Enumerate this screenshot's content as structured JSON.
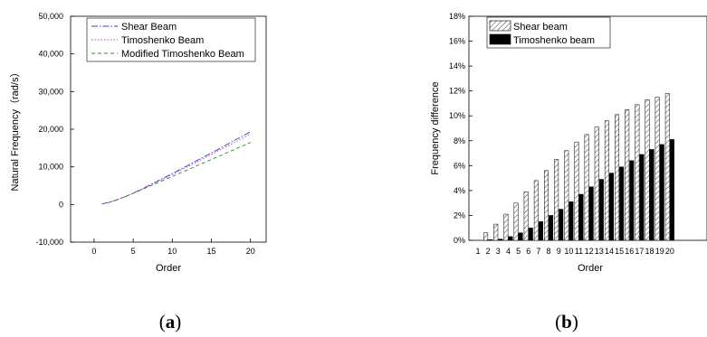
{
  "captions": {
    "a_open": "(",
    "a_letter": "a",
    "a_close": ")",
    "b_open": "(",
    "b_letter": "b",
    "b_close": ")"
  },
  "chart_data": [
    {
      "id": "a",
      "type": "line",
      "xlabel": "Order",
      "ylabel": "Natural Frequency（rad/s）",
      "xlim": [
        -3,
        22
      ],
      "ylim": [
        -10000,
        50000
      ],
      "xticks": [
        0,
        5,
        10,
        15,
        20
      ],
      "xtick_labels": [
        "0",
        "5",
        "10",
        "15",
        "20"
      ],
      "yticks": [
        -10000,
        0,
        10000,
        20000,
        30000,
        40000,
        50000
      ],
      "ytick_labels": [
        "-10,000",
        "0",
        "10,000",
        "20,000",
        "30,000",
        "40,000",
        "50,000"
      ],
      "legend_position": "top-left",
      "x": [
        1,
        2,
        3,
        4,
        5,
        6,
        7,
        8,
        9,
        10,
        11,
        12,
        13,
        14,
        15,
        16,
        17,
        18,
        19,
        20
      ],
      "series": [
        {
          "name": "Shear Beam",
          "color": "#3a3ad0",
          "dash": "7 2 1.5 2",
          "values": [
            150,
            600,
            1300,
            2100,
            3000,
            4000,
            5050,
            6100,
            7150,
            8200,
            9300,
            10400,
            11500,
            12600,
            13700,
            14800,
            15950,
            17100,
            18200,
            19300
          ]
        },
        {
          "name": "Timoshenko Beam",
          "color": "#c040c0",
          "dash": "1.5 2",
          "values": [
            150,
            600,
            1300,
            2100,
            3000,
            3950,
            4950,
            5950,
            6950,
            8000,
            9050,
            10100,
            11150,
            12250,
            13300,
            14400,
            15450,
            16550,
            17600,
            18700
          ]
        },
        {
          "name": "Modified Timoshenko Beam",
          "color": "#2a8a2a",
          "dash": "4 3",
          "values": [
            150,
            600,
            1300,
            2100,
            2950,
            3850,
            4750,
            5650,
            6550,
            7450,
            8350,
            9250,
            10150,
            11050,
            11950,
            12850,
            13750,
            14650,
            15550,
            16500
          ]
        }
      ]
    },
    {
      "id": "b",
      "type": "bar",
      "xlabel": "Order",
      "ylabel": "Frequency difference",
      "ylim": [
        0,
        18
      ],
      "yticks": [
        0,
        2,
        4,
        6,
        8,
        10,
        12,
        14,
        16,
        18
      ],
      "ytick_labels": [
        "0%",
        "2%",
        "4%",
        "6%",
        "8%",
        "10%",
        "12%",
        "14%",
        "16%",
        "18%"
      ],
      "categories": [
        "1",
        "2",
        "3",
        "4",
        "5",
        "6",
        "7",
        "8",
        "9",
        "10",
        "11",
        "12",
        "13",
        "14",
        "15",
        "16",
        "17",
        "18",
        "19",
        "20"
      ],
      "legend_position": "top-left",
      "series": [
        {
          "name": "Shear beam",
          "fill": "hatched",
          "values": [
            0,
            0.6,
            1.3,
            2.1,
            3.0,
            3.9,
            4.8,
            5.6,
            6.5,
            7.2,
            7.9,
            8.5,
            9.1,
            9.6,
            10.1,
            10.5,
            10.9,
            11.3,
            11.5,
            11.8
          ]
        },
        {
          "name": "Timoshenko beam",
          "fill": "black",
          "values": [
            0,
            0.05,
            0.1,
            0.3,
            0.6,
            1.0,
            1.5,
            2.0,
            2.5,
            3.1,
            3.7,
            4.3,
            4.9,
            5.4,
            5.9,
            6.4,
            6.9,
            7.3,
            7.7,
            8.1
          ]
        }
      ]
    }
  ]
}
